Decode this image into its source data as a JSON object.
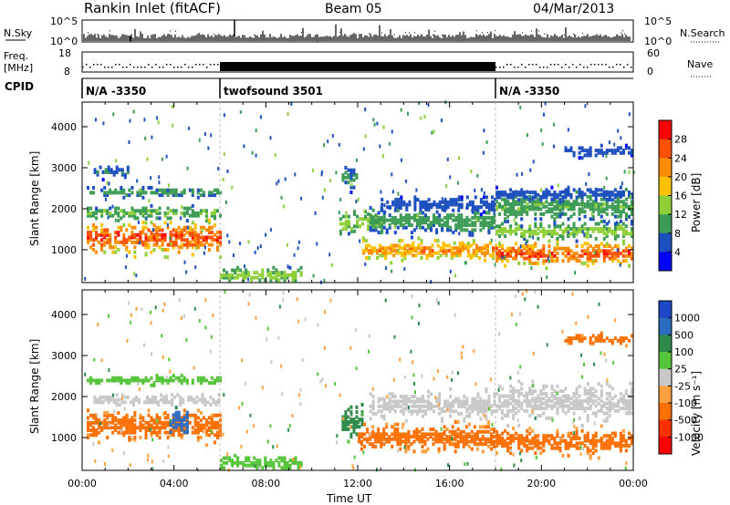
{
  "header": {
    "title": "Rankin Inlet (fitACF)",
    "beam": "Beam 05",
    "date": "04/Mar/2013"
  },
  "aux_panels": {
    "nsky": {
      "label": "N.Sky",
      "ticks": [
        "10^5",
        "10^0"
      ]
    },
    "nsearch": {
      "label": "N.Search",
      "ticks": [
        "10^5",
        "10^0"
      ]
    },
    "freq": {
      "label_line1": "Freq.",
      "label_line2": "[MHz]",
      "ticks": [
        "18",
        "8"
      ]
    },
    "nave": {
      "label": "Nave",
      "ticks": [
        "60",
        "0"
      ]
    },
    "cpid": {
      "label": "CPID",
      "segments": [
        {
          "name": "N/A -3350",
          "start_hour": 0,
          "end_hour": 6
        },
        {
          "name": "twofsound 3501",
          "start_hour": 6,
          "end_hour": 18
        },
        {
          "name": "N/A -3350",
          "start_hour": 18,
          "end_hour": 24
        }
      ]
    }
  },
  "chart_data": [
    {
      "type": "heatmap",
      "panel": "power",
      "xlabel": "",
      "ylabel": "Slant Range [km]",
      "xlim": [
        0,
        24
      ],
      "ylim": [
        200,
        4600
      ],
      "yticks": [
        "1000",
        "2000",
        "3000",
        "4000"
      ],
      "colorbar": {
        "label": "Power [dB]",
        "ticks": [
          "28",
          "24",
          "20",
          "16",
          "12",
          "8",
          "4"
        ],
        "colors": [
          "#ff0000",
          "#ff5000",
          "#ff8c00",
          "#ffc000",
          "#8fd03a",
          "#3c9b55",
          "#1d4fbe",
          "#0000ff"
        ]
      },
      "echo_bands": [
        {
          "from": 0.2,
          "to": 6.0,
          "center": 1300,
          "width": 300,
          "value": 26
        },
        {
          "from": 0.2,
          "to": 6.0,
          "center": 1900,
          "width": 120,
          "value": 12
        },
        {
          "from": 0.2,
          "to": 6.0,
          "center": 2400,
          "width": 80,
          "value": 10
        },
        {
          "from": 0.5,
          "to": 2.0,
          "center": 2900,
          "width": 120,
          "value": 8
        },
        {
          "from": 6.0,
          "to": 9.5,
          "center": 380,
          "width": 150,
          "value": 14
        },
        {
          "from": 11.2,
          "to": 13.0,
          "center": 1650,
          "width": 200,
          "value": 14
        },
        {
          "from": 11.3,
          "to": 12.0,
          "center": 2800,
          "width": 250,
          "value": 9
        },
        {
          "from": 12.2,
          "to": 18.0,
          "center": 1000,
          "width": 200,
          "value": 22
        },
        {
          "from": 12.5,
          "to": 18.0,
          "center": 1700,
          "width": 250,
          "value": 10
        },
        {
          "from": 13.0,
          "to": 18.0,
          "center": 2100,
          "width": 150,
          "value": 7
        },
        {
          "from": 18.0,
          "to": 24.0,
          "center": 900,
          "width": 220,
          "value": 26
        },
        {
          "from": 18.0,
          "to": 24.0,
          "center": 1450,
          "width": 150,
          "value": 14
        },
        {
          "from": 18.0,
          "to": 24.0,
          "center": 2050,
          "width": 300,
          "value": 11
        },
        {
          "from": 18.0,
          "to": 24.0,
          "center": 2350,
          "width": 120,
          "value": 7
        },
        {
          "from": 21.0,
          "to": 24.0,
          "center": 3400,
          "width": 100,
          "value": 7
        }
      ]
    },
    {
      "type": "heatmap",
      "panel": "velocity",
      "xlabel": "Time UT",
      "ylabel": "Slant Range [km]",
      "xlim": [
        0,
        24
      ],
      "ylim": [
        200,
        4600
      ],
      "xticks": [
        "00:00",
        "04:00",
        "08:00",
        "12:00",
        "16:00",
        "20:00",
        "00:00"
      ],
      "yticks": [
        "1000",
        "2000",
        "3000",
        "4000"
      ],
      "colorbar": {
        "label": "Velocity [m s⁻¹]",
        "ticks": [
          "1000",
          "500",
          "100",
          "25",
          "-25",
          "-100",
          "-500",
          "-1000"
        ],
        "colors": [
          "#1d46c8",
          "#2c6cc0",
          "#2e8b4a",
          "#55c43a",
          "#c8c8c8",
          "#ffa040",
          "#ff7000",
          "#ff3000",
          "#ff0000"
        ]
      },
      "echo_bands": [
        {
          "from": 0.2,
          "to": 6.0,
          "center": 1300,
          "width": 300,
          "value": -150
        },
        {
          "from": 3.8,
          "to": 4.6,
          "center": 1350,
          "width": 250,
          "value": 800
        },
        {
          "from": 0.5,
          "to": 6.0,
          "center": 1900,
          "width": 100,
          "value": 0
        },
        {
          "from": 0.2,
          "to": 6.0,
          "center": 2400,
          "width": 80,
          "value": 60
        },
        {
          "from": 6.0,
          "to": 9.5,
          "center": 380,
          "width": 150,
          "value": 60
        },
        {
          "from": 11.3,
          "to": 12.2,
          "center": 1400,
          "width": 350,
          "value": 200
        },
        {
          "from": 12.0,
          "to": 18.0,
          "center": 1000,
          "width": 250,
          "value": -150
        },
        {
          "from": 12.5,
          "to": 18.0,
          "center": 1800,
          "width": 250,
          "value": 0
        },
        {
          "from": 18.0,
          "to": 24.0,
          "center": 900,
          "width": 250,
          "value": -150
        },
        {
          "from": 18.0,
          "to": 24.0,
          "center": 1850,
          "width": 350,
          "value": 0
        },
        {
          "from": 21.0,
          "to": 24.0,
          "center": 3400,
          "width": 100,
          "value": -150
        }
      ]
    }
  ]
}
